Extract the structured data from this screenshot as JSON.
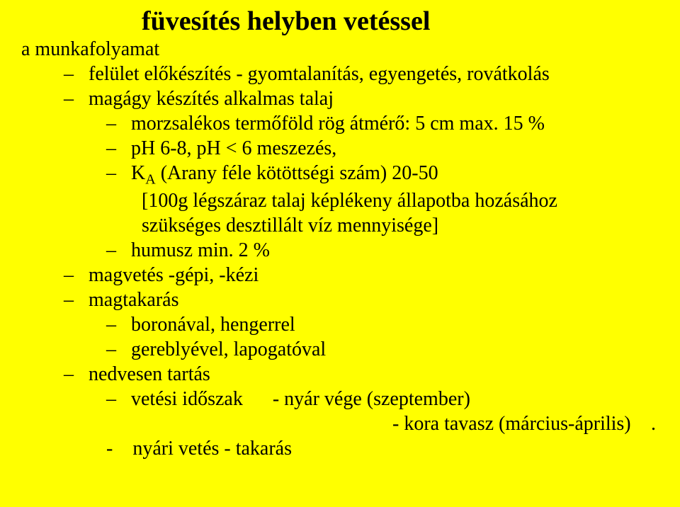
{
  "title": "füvesítés helyben vetéssel",
  "lines": {
    "l1": "a munkafolyamat",
    "l2": "–   felület előkészítés - gyomtalanítás, egyengetés, rovátkolás",
    "l3": "–   magágy készítés alkalmas talaj",
    "l4": "–   morzsalékos termőföld rög átmérő: 5 cm max. 15 %",
    "l5": "–   pH 6-8, pH < 6 meszezés,",
    "l6a": "–   K",
    "l6sub": "A",
    "l6b": " (Arany féle kötöttségi szám) 20-50",
    "l7": "[100g légszáraz talaj képlékeny állapotba hozásához",
    "l8": "szükséges desztillált víz mennyisége]",
    "l9": "–   humusz min. 2 %",
    "l10": "–   magvetés -gépi, -kézi",
    "l11": "–   magtakarás",
    "l12": "–   boronával, hengerrel",
    "l13": "–   gereblyével, lapogatóval",
    "l14": "–   nedvesen tartás",
    "l15": "–   vetési időszak      - nyár vége (szeptember)",
    "l16": "- kora tavasz (március-április)",
    "l16dot": ".",
    "l17": "-    nyári vetés - takarás"
  }
}
